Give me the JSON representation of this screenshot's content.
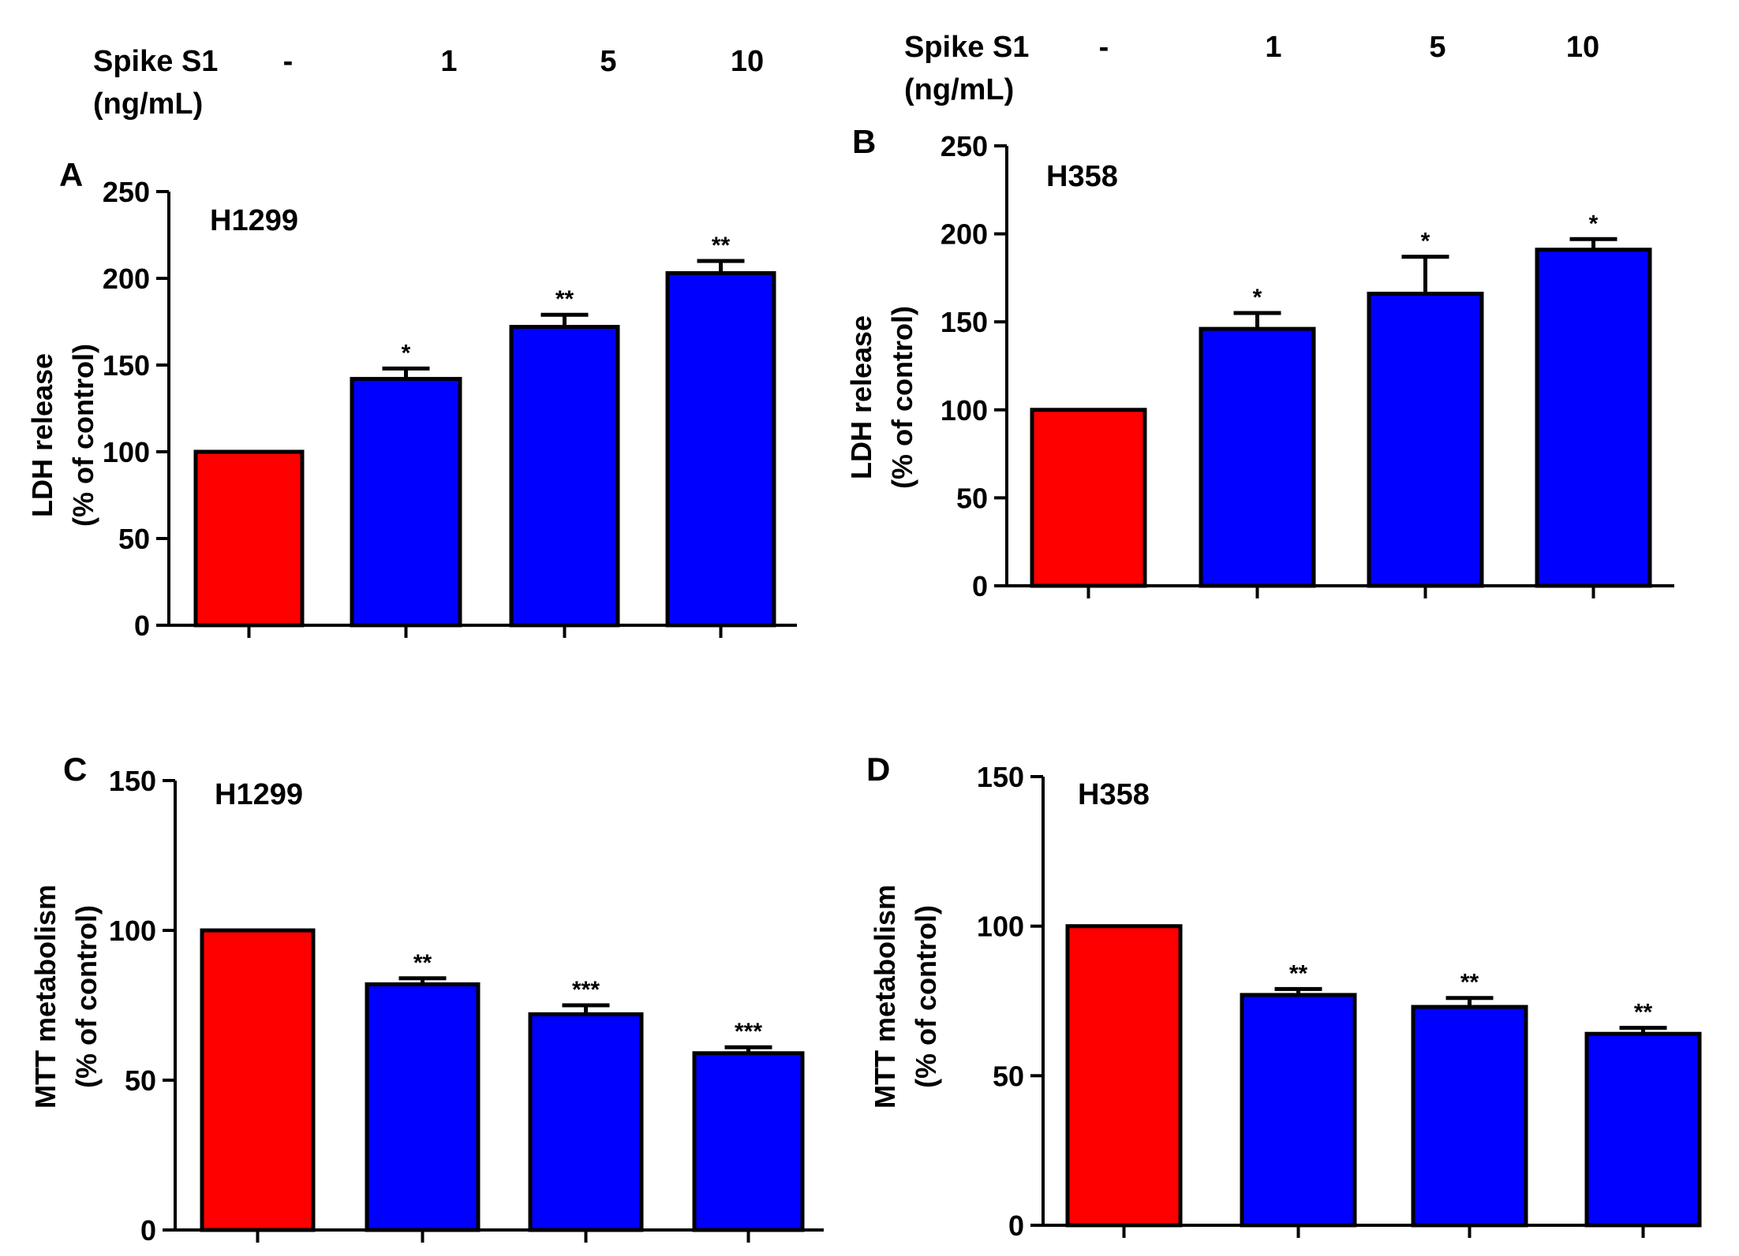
{
  "colors": {
    "control": "#ff0000",
    "treated": "#0000ff",
    "axis": "#000000"
  },
  "headers": [
    {
      "label_line1": "Spike S1",
      "label_line2": "(ng/mL)",
      "doses": [
        "-",
        "1",
        "5",
        "10"
      ]
    },
    {
      "label_line1": "Spike S1",
      "label_line2": "(ng/mL)",
      "doses": [
        "-",
        "1",
        "5",
        "10"
      ]
    }
  ],
  "chart_data": [
    {
      "panel": "A",
      "type": "bar",
      "subtitle": "H1299",
      "ylabel_line1": "LDH release",
      "ylabel_line2": "(% of control)",
      "categories": [
        "-",
        "1",
        "5",
        "10"
      ],
      "values": [
        100,
        142,
        172,
        203
      ],
      "errors": [
        0,
        6,
        7,
        7
      ],
      "significance": [
        "",
        "*",
        "**",
        "**"
      ],
      "ylim": [
        0,
        250
      ],
      "yticks": [
        0,
        50,
        100,
        150,
        200,
        250
      ]
    },
    {
      "panel": "B",
      "type": "bar",
      "subtitle": "H358",
      "ylabel_line1": "LDH release",
      "ylabel_line2": "(% of control)",
      "categories": [
        "-",
        "1",
        "5",
        "10"
      ],
      "values": [
        100,
        146,
        166,
        191
      ],
      "errors": [
        0,
        9,
        21,
        6
      ],
      "significance": [
        "",
        "*",
        "*",
        "*"
      ],
      "ylim": [
        0,
        250
      ],
      "yticks": [
        0,
        50,
        100,
        150,
        200,
        250
      ]
    },
    {
      "panel": "C",
      "type": "bar",
      "subtitle": "H1299",
      "ylabel_line1": "MTT metabolism",
      "ylabel_line2": "(% of control)",
      "categories": [
        "-",
        "1",
        "5",
        "10"
      ],
      "values": [
        100,
        82,
        72,
        59
      ],
      "errors": [
        0,
        2,
        3,
        2
      ],
      "significance": [
        "",
        "**",
        "***",
        "***"
      ],
      "ylim": [
        0,
        150
      ],
      "yticks": [
        0,
        50,
        100,
        150
      ]
    },
    {
      "panel": "D",
      "type": "bar",
      "subtitle": "H358",
      "ylabel_line1": "MTT metabolism",
      "ylabel_line2": "(% of control)",
      "categories": [
        "-",
        "1",
        "5",
        "10"
      ],
      "values": [
        100,
        77,
        73,
        64
      ],
      "errors": [
        0,
        2,
        3,
        2
      ],
      "significance": [
        "",
        "**",
        "**",
        "**"
      ],
      "ylim": [
        0,
        150
      ],
      "yticks": [
        0,
        50,
        100,
        150
      ]
    }
  ]
}
